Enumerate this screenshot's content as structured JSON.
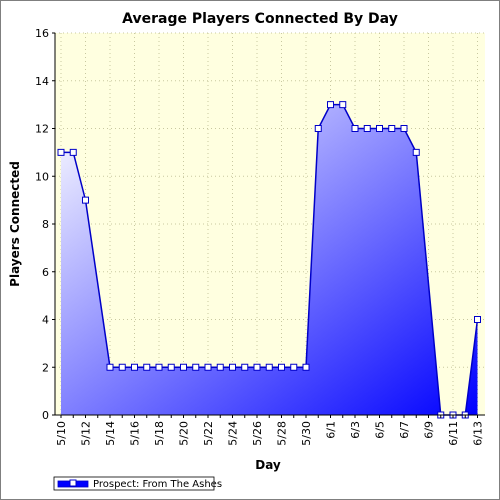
{
  "chart_data": {
    "type": "area",
    "title": "Average Players Connected By Day",
    "xlabel": "Day",
    "ylabel": "Players Connected",
    "ylim": [
      0,
      16
    ],
    "yticks": [
      0,
      2,
      4,
      6,
      8,
      10,
      12,
      14,
      16
    ],
    "x": [
      "5/10",
      "5/11",
      "5/12",
      "5/13",
      "5/14",
      "5/15",
      "5/16",
      "5/17",
      "5/18",
      "5/19",
      "5/20",
      "5/21",
      "5/22",
      "5/23",
      "5/24",
      "5/25",
      "5/26",
      "5/27",
      "5/28",
      "5/29",
      "5/30",
      "5/31",
      "6/1",
      "6/2",
      "6/3",
      "6/4",
      "6/5",
      "6/6",
      "6/7",
      "6/8",
      "6/9",
      "6/10",
      "6/11",
      "6/12",
      "6/13"
    ],
    "xtick_labels": [
      "5/10",
      "5/12",
      "5/14",
      "5/16",
      "5/18",
      "5/20",
      "5/22",
      "5/24",
      "5/26",
      "5/28",
      "5/30",
      "6/1",
      "6/3",
      "6/5",
      "6/7",
      "6/9",
      "6/11",
      "6/13"
    ],
    "series": [
      {
        "name": "Prospect: From The Ashes",
        "values": [
          11,
          11,
          9,
          null,
          2,
          2,
          2,
          2,
          2,
          2,
          2,
          2,
          2,
          2,
          2,
          2,
          2,
          2,
          2,
          2,
          2,
          12,
          13,
          13,
          12,
          12,
          12,
          12,
          12,
          11,
          null,
          0,
          0,
          0,
          4
        ]
      }
    ],
    "grid": true,
    "legend_position": "bottom-left",
    "colors": {
      "plot_background": "#ffffe0",
      "grid": "#c8c8a0",
      "line": "#0000c8",
      "fill_dark": "#0000ff",
      "fill_light": "#ffffff"
    }
  }
}
